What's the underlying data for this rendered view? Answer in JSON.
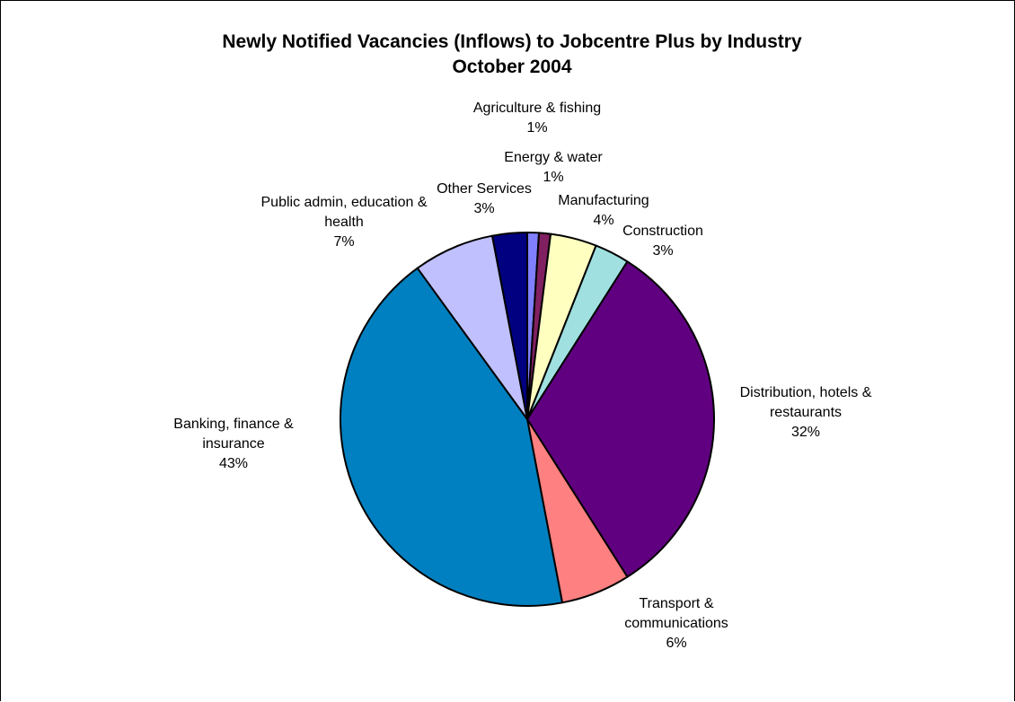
{
  "chart_data": {
    "type": "pie",
    "title_lines": [
      "Newly Notified Vacancies (Inflows) to Jobcentre Plus by Industry",
      "October 2004"
    ],
    "start_angle_deg": 0,
    "direction": "clockwise",
    "slices": [
      {
        "name": "Agriculture & fishing",
        "value": 1,
        "label_lines": [
          "Agriculture & fishing",
          "1%"
        ],
        "color": "#8080FF"
      },
      {
        "name": "Energy & water",
        "value": 1,
        "label_lines": [
          "Energy & water",
          "1%"
        ],
        "color": "#802060"
      },
      {
        "name": "Manufacturing",
        "value": 4,
        "label_lines": [
          "Manufacturing",
          "4%"
        ],
        "color": "#FFFFC0"
      },
      {
        "name": "Construction",
        "value": 3,
        "label_lines": [
          "Construction",
          "3%"
        ],
        "color": "#A0E0E0"
      },
      {
        "name": "Distribution, hotels & restaurants",
        "value": 32,
        "label_lines": [
          "Distribution, hotels &",
          "restaurants",
          "32%"
        ],
        "color": "#600080"
      },
      {
        "name": "Transport & communications",
        "value": 6,
        "label_lines": [
          "Transport &",
          "communications",
          "6%"
        ],
        "color": "#FF8080"
      },
      {
        "name": "Banking, finance & insurance",
        "value": 43,
        "label_lines": [
          "Banking, finance &",
          "insurance",
          "43%"
        ],
        "color": "#0080C0"
      },
      {
        "name": "Public admin, education & health",
        "value": 7,
        "label_lines": [
          "Public admin, education &",
          "health",
          "7%"
        ],
        "color": "#C0C0FF"
      },
      {
        "name": "Other Services",
        "value": 3,
        "label_lines": [
          "Other Services",
          "3%"
        ],
        "color": "#000080"
      }
    ]
  }
}
